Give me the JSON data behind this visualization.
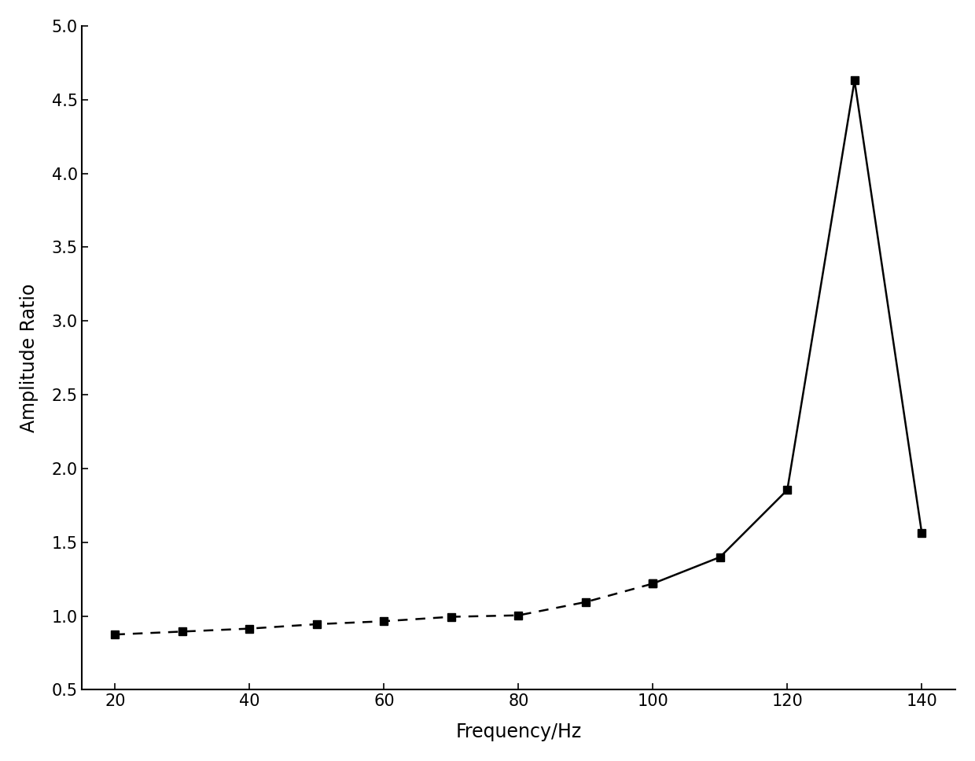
{
  "x_dash": [
    20,
    30,
    40,
    50,
    60,
    70,
    80,
    90,
    100
  ],
  "y_dash": [
    0.875,
    0.895,
    0.915,
    0.945,
    0.965,
    0.995,
    1.005,
    1.095,
    1.22
  ],
  "x_solid": [
    100,
    110,
    120,
    130,
    140
  ],
  "y_solid": [
    1.22,
    1.4,
    1.855,
    4.63,
    1.565
  ],
  "xlabel": "Frequency/Hz",
  "ylabel": "Amplitude Ratio",
  "xlim": [
    15,
    145
  ],
  "ylim": [
    0.5,
    5.0
  ],
  "xticks": [
    20,
    40,
    60,
    80,
    100,
    120,
    140
  ],
  "yticks": [
    0.5,
    1.0,
    1.5,
    2.0,
    2.5,
    3.0,
    3.5,
    4.0,
    4.5,
    5.0
  ],
  "line_color": "#000000",
  "marker": "s",
  "markersize": 7,
  "linewidth": 1.8,
  "background_color": "#ffffff",
  "xlabel_fontsize": 17,
  "ylabel_fontsize": 17,
  "tick_fontsize": 15
}
